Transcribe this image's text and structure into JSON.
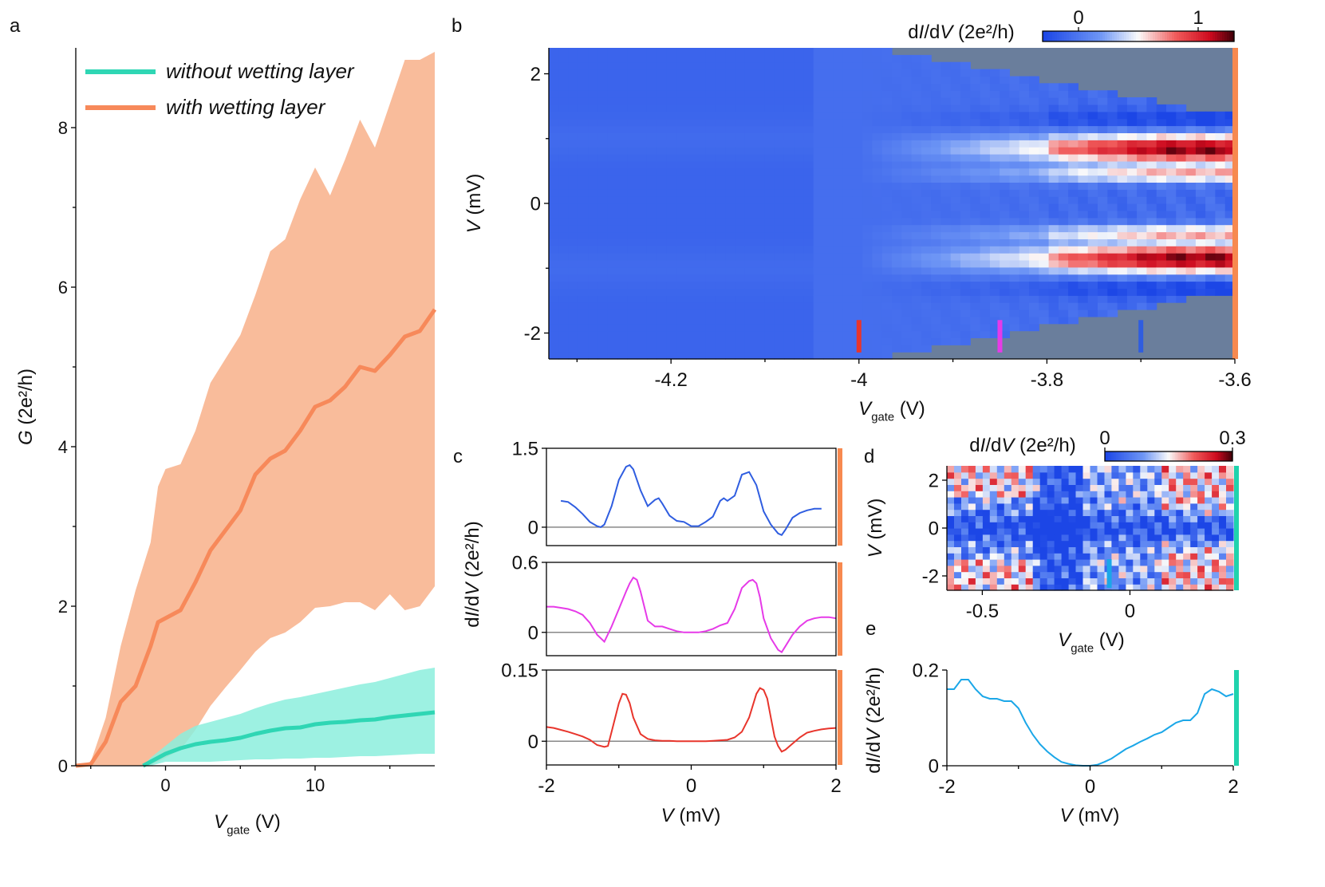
{
  "panel_letters": [
    "a",
    "b",
    "c",
    "d",
    "e"
  ],
  "colors": {
    "teal": "#2fd6b4",
    "teal_fill": "#8ceedd",
    "orange": "#f7895a",
    "orange_fill": "#f9bc9b",
    "bar_orange": "#f7894f",
    "bar_teal": "#1fd3ad",
    "red": "#e8352c",
    "magenta": "#e63ae8",
    "blue": "#2f5de0",
    "cyan": "#1ba7e8",
    "zero_line": "#888888",
    "masked": "#6a7e9c"
  },
  "chart_data": [
    {
      "panel": "a",
      "type": "area",
      "xlabel": "V",
      "xlabel_sub": "gate",
      "xunit": "(V)",
      "ylabel": "G",
      "yunit": "(2e²/h)",
      "xlim": [
        -6,
        18
      ],
      "ylim": [
        0,
        9
      ],
      "xticks": [
        0,
        10
      ],
      "yticks": [
        0,
        2,
        4,
        6,
        8
      ],
      "legend_position": "top-left",
      "series": [
        {
          "name": "without wetting layer",
          "color": "teal",
          "x": [
            -1.5,
            -1,
            0,
            1,
            2,
            3,
            4,
            5,
            6,
            7,
            8,
            9,
            10,
            11,
            12,
            13,
            14,
            15,
            16,
            17,
            18
          ],
          "mean": [
            0,
            0.05,
            0.15,
            0.22,
            0.27,
            0.3,
            0.32,
            0.35,
            0.4,
            0.44,
            0.47,
            0.48,
            0.52,
            0.54,
            0.55,
            0.57,
            0.58,
            0.61,
            0.63,
            0.65,
            0.67
          ],
          "upper": [
            0,
            0.1,
            0.25,
            0.4,
            0.5,
            0.55,
            0.6,
            0.65,
            0.72,
            0.78,
            0.83,
            0.86,
            0.9,
            0.94,
            0.98,
            1.02,
            1.05,
            1.1,
            1.15,
            1.2,
            1.23
          ],
          "lower": [
            0,
            0,
            0.05,
            0.05,
            0.05,
            0.05,
            0.06,
            0.07,
            0.08,
            0.08,
            0.09,
            0.09,
            0.1,
            0.1,
            0.11,
            0.12,
            0.12,
            0.13,
            0.14,
            0.15,
            0.15
          ]
        },
        {
          "name": "with wetting layer",
          "color": "orange",
          "x": [
            -6,
            -5,
            -4,
            -3,
            -2,
            -1,
            -0.5,
            0,
            1,
            2,
            3,
            4,
            5,
            6,
            7,
            8,
            9,
            10,
            11,
            12,
            13,
            14,
            15,
            16,
            17,
            18
          ],
          "mean": [
            0,
            0.02,
            0.3,
            0.8,
            1.0,
            1.5,
            1.8,
            1.85,
            1.95,
            2.3,
            2.7,
            2.95,
            3.2,
            3.65,
            3.85,
            3.95,
            4.2,
            4.5,
            4.58,
            4.75,
            5.0,
            4.95,
            5.15,
            5.38,
            5.45,
            5.72
          ],
          "upper": [
            0,
            0.05,
            0.6,
            1.5,
            2.2,
            2.8,
            3.5,
            3.72,
            3.78,
            4.2,
            4.8,
            5.1,
            5.4,
            5.9,
            6.45,
            6.6,
            7.1,
            7.5,
            7.15,
            7.6,
            8.1,
            7.75,
            8.3,
            8.85,
            8.85,
            8.95
          ],
          "lower": [
            0,
            0,
            0,
            0,
            0,
            0.01,
            0.05,
            0.1,
            0.2,
            0.45,
            0.75,
            0.98,
            1.2,
            1.43,
            1.6,
            1.67,
            1.8,
            1.98,
            2.0,
            2.05,
            2.05,
            1.95,
            2.15,
            1.95,
            2.0,
            2.25
          ]
        }
      ]
    },
    {
      "panel": "b",
      "type": "heatmap",
      "xlabel": "V",
      "xlabel_sub": "gate",
      "xunit": "(V)",
      "ylabel": "V",
      "yunit": "(mV)",
      "xlim": [
        -4.33,
        -3.6
      ],
      "ylim": [
        -2.4,
        2.4
      ],
      "xticks": [
        -4.2,
        -4,
        -3.8,
        -3.6
      ],
      "yticks": [
        -2,
        0,
        2
      ],
      "colorbar_label": "dI/dV",
      "colorbar_unit": "(2e²/h)",
      "colorbar_range": [
        -0.3,
        1.3
      ],
      "colorbar_ticks": [
        0,
        1
      ],
      "markers": [
        {
          "x": -4.0,
          "color": "red"
        },
        {
          "x": -3.85,
          "color": "magenta"
        },
        {
          "x": -3.7,
          "color": "blue"
        }
      ]
    },
    {
      "panel": "c",
      "type": "line",
      "xlabel": "V",
      "xunit": "(mV)",
      "ylabel": "dI/dV",
      "yunit": "(2e²/h)",
      "xlim": [
        -2,
        2
      ],
      "xticks": [
        -2,
        0,
        2
      ],
      "subplots": [
        {
          "color": "blue",
          "ylim": [
            -0.35,
            1.5
          ],
          "yticks": [
            0,
            1.5
          ],
          "x": [
            -1.8,
            -1.7,
            -1.6,
            -1.5,
            -1.4,
            -1.3,
            -1.25,
            -1.2,
            -1.1,
            -1.0,
            -0.9,
            -0.85,
            -0.8,
            -0.7,
            -0.6,
            -0.5,
            -0.45,
            -0.4,
            -0.3,
            -0.2,
            -0.1,
            0,
            0.1,
            0.2,
            0.3,
            0.4,
            0.45,
            0.5,
            0.6,
            0.7,
            0.8,
            0.9,
            1.0,
            1.1,
            1.2,
            1.25,
            1.3,
            1.4,
            1.5,
            1.6,
            1.7,
            1.8
          ],
          "y": [
            0.5,
            0.48,
            0.38,
            0.25,
            0.1,
            0.02,
            0,
            0.05,
            0.4,
            0.9,
            1.15,
            1.18,
            1.1,
            0.7,
            0.4,
            0.52,
            0.55,
            0.45,
            0.22,
            0.12,
            0.1,
            0.02,
            0.02,
            0.1,
            0.2,
            0.5,
            0.55,
            0.5,
            0.6,
            1.0,
            1.05,
            0.8,
            0.3,
            0.05,
            -0.12,
            -0.15,
            -0.05,
            0.18,
            0.27,
            0.32,
            0.35,
            0.35
          ]
        },
        {
          "color": "magenta",
          "ylim": [
            -0.2,
            0.6
          ],
          "yticks": [
            0,
            0.6
          ],
          "x": [
            -2,
            -1.9,
            -1.8,
            -1.7,
            -1.6,
            -1.5,
            -1.4,
            -1.3,
            -1.2,
            -1.1,
            -1.0,
            -0.9,
            -0.85,
            -0.8,
            -0.75,
            -0.7,
            -0.6,
            -0.5,
            -0.4,
            -0.3,
            -0.2,
            -0.1,
            0,
            0.1,
            0.2,
            0.3,
            0.4,
            0.5,
            0.6,
            0.7,
            0.8,
            0.85,
            0.9,
            0.95,
            1.0,
            1.1,
            1.2,
            1.25,
            1.3,
            1.4,
            1.5,
            1.6,
            1.7,
            1.8,
            1.9,
            2.0
          ],
          "y": [
            0.22,
            0.22,
            0.21,
            0.2,
            0.18,
            0.15,
            0.08,
            -0.02,
            -0.08,
            0.05,
            0.2,
            0.35,
            0.42,
            0.47,
            0.45,
            0.35,
            0.1,
            0.05,
            0.05,
            0.03,
            0.01,
            0,
            0,
            0,
            0.01,
            0.03,
            0.06,
            0.08,
            0.2,
            0.38,
            0.44,
            0.45,
            0.42,
            0.3,
            0.12,
            -0.05,
            -0.15,
            -0.17,
            -0.12,
            -0.02,
            0.05,
            0.1,
            0.12,
            0.13,
            0.13,
            0.12
          ]
        },
        {
          "color": "red",
          "ylim": [
            -0.05,
            0.15
          ],
          "yticks": [
            0,
            0.15
          ],
          "x": [
            -2,
            -1.9,
            -1.8,
            -1.7,
            -1.6,
            -1.5,
            -1.4,
            -1.3,
            -1.2,
            -1.15,
            -1.1,
            -1.0,
            -0.95,
            -0.9,
            -0.85,
            -0.8,
            -0.7,
            -0.6,
            -0.5,
            -0.4,
            -0.3,
            -0.2,
            -0.1,
            0,
            0.1,
            0.2,
            0.3,
            0.4,
            0.5,
            0.6,
            0.7,
            0.8,
            0.9,
            0.95,
            1.0,
            1.05,
            1.1,
            1.15,
            1.2,
            1.25,
            1.3,
            1.4,
            1.5,
            1.6,
            1.7,
            1.8,
            1.9,
            2.0
          ],
          "y": [
            0.03,
            0.028,
            0.024,
            0.02,
            0.015,
            0.01,
            0.003,
            -0.008,
            -0.012,
            -0.01,
            0.02,
            0.08,
            0.1,
            0.098,
            0.08,
            0.05,
            0.015,
            0.005,
            0.002,
            0.001,
            0.001,
            0,
            0,
            0,
            0,
            0,
            0.001,
            0.002,
            0.003,
            0.008,
            0.02,
            0.05,
            0.1,
            0.112,
            0.108,
            0.09,
            0.05,
            0.01,
            -0.01,
            -0.022,
            -0.018,
            -0.005,
            0.008,
            0.018,
            0.022,
            0.025,
            0.027,
            0.028
          ]
        }
      ]
    },
    {
      "panel": "d",
      "type": "heatmap",
      "xlabel": "V",
      "xlabel_sub": "gate",
      "xunit": "(V)",
      "ylabel": "V",
      "yunit": "(mV)",
      "xlim": [
        -0.62,
        0.35
      ],
      "ylim": [
        -2.6,
        2.6
      ],
      "xticks": [
        -0.5,
        0
      ],
      "yticks": [
        -2,
        0,
        2
      ],
      "colorbar_label": "dI/dV",
      "colorbar_unit": "(2e²/h)",
      "colorbar_range": [
        0,
        0.3
      ],
      "colorbar_ticks": [
        0,
        0.3
      ],
      "markers": [
        {
          "x": -0.07,
          "color": "cyan"
        }
      ]
    },
    {
      "panel": "e",
      "type": "line",
      "xlabel": "V",
      "xunit": "(mV)",
      "ylabel": "dI/dV",
      "yunit": "(2e²/h)",
      "xlim": [
        -2,
        2
      ],
      "ylim": [
        0,
        0.2
      ],
      "xticks": [
        -2,
        0,
        2
      ],
      "yticks": [
        0,
        0.2
      ],
      "color": "cyan",
      "x": [
        -2,
        -1.9,
        -1.8,
        -1.7,
        -1.6,
        -1.5,
        -1.4,
        -1.3,
        -1.2,
        -1.1,
        -1.0,
        -0.9,
        -0.8,
        -0.7,
        -0.6,
        -0.5,
        -0.4,
        -0.3,
        -0.2,
        -0.1,
        0,
        0.1,
        0.2,
        0.3,
        0.4,
        0.5,
        0.6,
        0.7,
        0.8,
        0.9,
        1.0,
        1.1,
        1.2,
        1.3,
        1.4,
        1.5,
        1.6,
        1.7,
        1.8,
        1.9,
        2.0
      ],
      "y": [
        0.16,
        0.16,
        0.18,
        0.18,
        0.16,
        0.145,
        0.14,
        0.14,
        0.135,
        0.135,
        0.12,
        0.09,
        0.065,
        0.045,
        0.03,
        0.018,
        0.008,
        0.004,
        0.001,
        0,
        0,
        0.002,
        0.008,
        0.015,
        0.025,
        0.035,
        0.042,
        0.05,
        0.057,
        0.065,
        0.07,
        0.08,
        0.09,
        0.095,
        0.095,
        0.11,
        0.15,
        0.16,
        0.155,
        0.145,
        0.15
      ]
    }
  ]
}
